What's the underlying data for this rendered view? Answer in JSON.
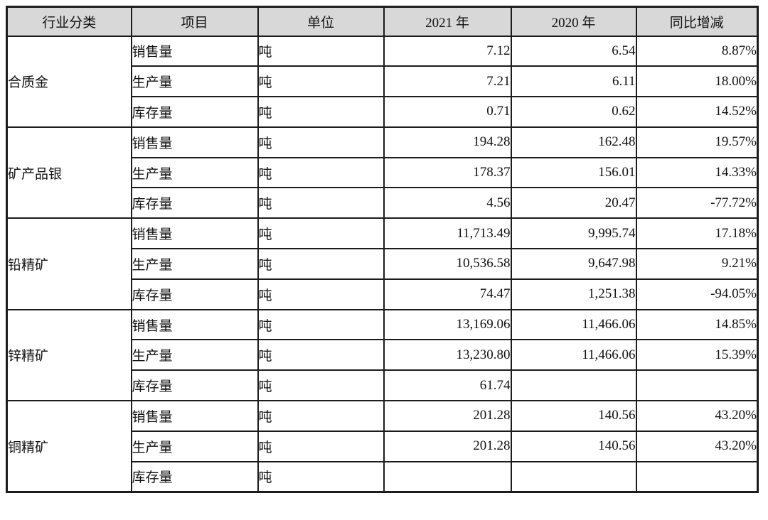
{
  "table": {
    "columns": [
      "行业分类",
      "项目",
      "单位",
      "2021 年",
      "2020 年",
      "同比增减"
    ],
    "groups": [
      {
        "category": "合质金",
        "rows": [
          {
            "item": "销售量",
            "unit": "吨",
            "y2021": "7.12",
            "y2020": "6.54",
            "yoy": "8.87%"
          },
          {
            "item": "生产量",
            "unit": "吨",
            "y2021": "7.21",
            "y2020": "6.11",
            "yoy": "18.00%"
          },
          {
            "item": "库存量",
            "unit": "吨",
            "y2021": "0.71",
            "y2020": "0.62",
            "yoy": "14.52%"
          }
        ]
      },
      {
        "category": "矿产品银",
        "rows": [
          {
            "item": "销售量",
            "unit": "吨",
            "y2021": "194.28",
            "y2020": "162.48",
            "yoy": "19.57%"
          },
          {
            "item": "生产量",
            "unit": "吨",
            "y2021": "178.37",
            "y2020": "156.01",
            "yoy": "14.33%"
          },
          {
            "item": "库存量",
            "unit": "吨",
            "y2021": "4.56",
            "y2020": "20.47",
            "yoy": "-77.72%"
          }
        ]
      },
      {
        "category": "铅精矿",
        "rows": [
          {
            "item": "销售量",
            "unit": "吨",
            "y2021": "11,713.49",
            "y2020": "9,995.74",
            "yoy": "17.18%"
          },
          {
            "item": "生产量",
            "unit": "吨",
            "y2021": "10,536.58",
            "y2020": "9,647.98",
            "yoy": "9.21%"
          },
          {
            "item": "库存量",
            "unit": "吨",
            "y2021": "74.47",
            "y2020": "1,251.38",
            "yoy": "-94.05%"
          }
        ]
      },
      {
        "category": "锌精矿",
        "rows": [
          {
            "item": "销售量",
            "unit": "吨",
            "y2021": "13,169.06",
            "y2020": "11,466.06",
            "yoy": "14.85%"
          },
          {
            "item": "生产量",
            "unit": "吨",
            "y2021": "13,230.80",
            "y2020": "11,466.06",
            "yoy": "15.39%"
          },
          {
            "item": "库存量",
            "unit": "吨",
            "y2021": "61.74",
            "y2020": "",
            "yoy": ""
          }
        ]
      },
      {
        "category": "铜精矿",
        "rows": [
          {
            "item": "销售量",
            "unit": "吨",
            "y2021": "201.28",
            "y2020": "140.56",
            "yoy": "43.20%"
          },
          {
            "item": "生产量",
            "unit": "吨",
            "y2021": "201.28",
            "y2020": "140.56",
            "yoy": "43.20%"
          },
          {
            "item": "库存量",
            "unit": "吨",
            "y2021": "",
            "y2020": "",
            "yoy": ""
          }
        ]
      }
    ],
    "colors": {
      "header_bg": "#d8d8d8",
      "item_bg": "#d8d8d8",
      "border": "#1c1c1c",
      "text": "#111111"
    }
  }
}
